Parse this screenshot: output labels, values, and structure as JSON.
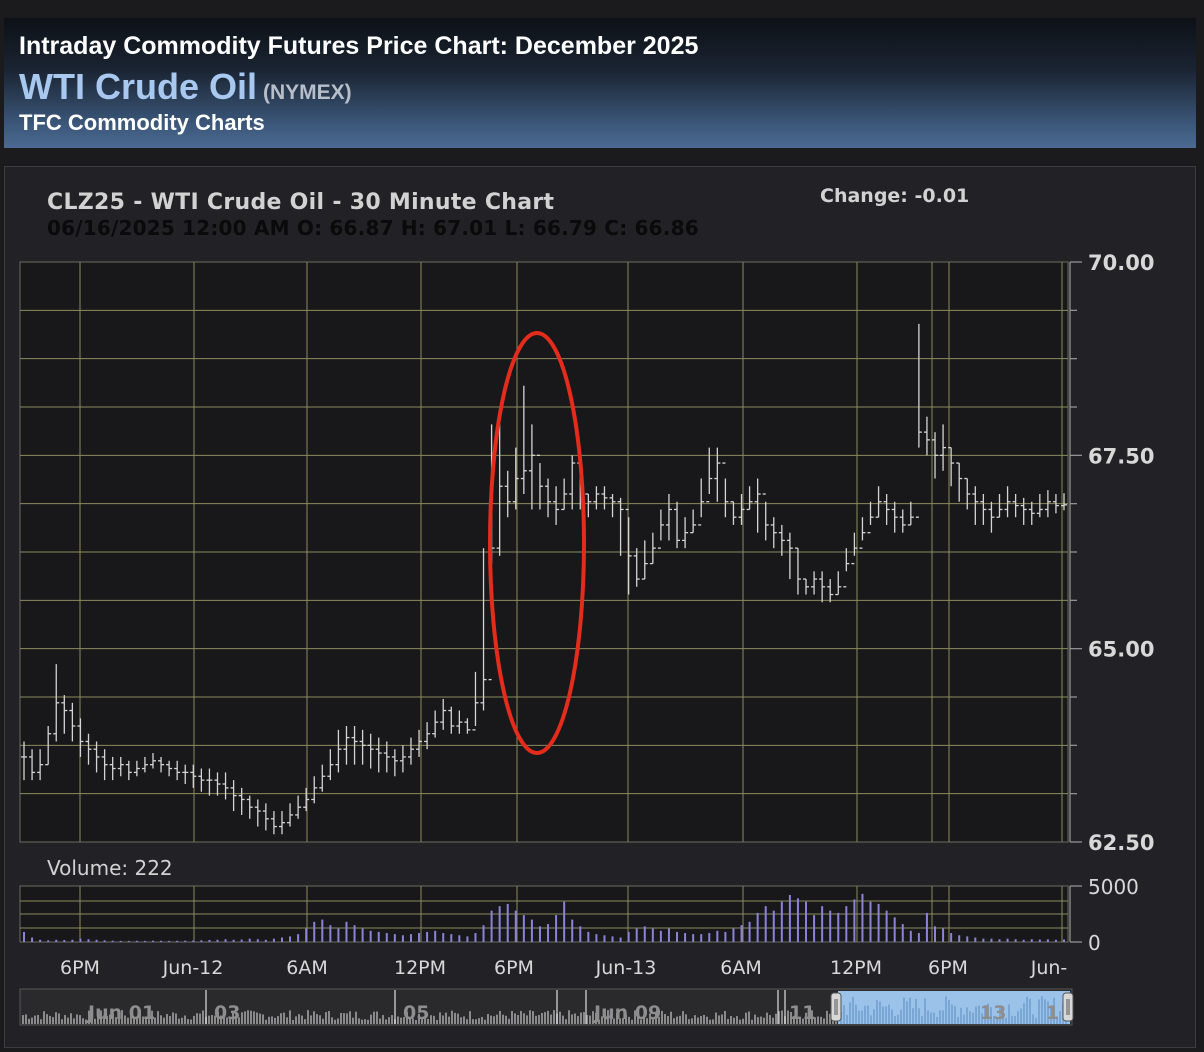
{
  "header": {
    "title": "Intraday Commodity Futures Price Chart: December 2025",
    "commodity": "WTI Crude Oil",
    "exchange": "(NYMEX)",
    "source": "TFC Commodity Charts"
  },
  "chart_data": {
    "type": "ohlc",
    "title": "CLZ25 - WTI Crude Oil - 30 Minute Chart",
    "ohlc_readout": "06/16/2025 12:00 AM O: 66.87 H: 67.01 L: 66.79 C: 66.86",
    "change_label": "Change: -0.01",
    "volume_label": "Volume: 222",
    "ylim": [
      62.5,
      70.0
    ],
    "y_ticks": [
      {
        "label": "70.00",
        "value": 70.0
      },
      {
        "label": "67.50",
        "value": 67.5
      },
      {
        "label": "65.00",
        "value": 65.0
      },
      {
        "label": "62.50",
        "value": 62.5
      }
    ],
    "volume_ylim": [
      0,
      5000
    ],
    "volume_ticks": [
      {
        "label": "5000",
        "value": 5000
      },
      {
        "label": "0",
        "value": 0
      }
    ],
    "x_ticks": [
      "6PM",
      "Jun-12",
      "6AM",
      "12PM",
      "6PM",
      "Jun-13",
      "6AM",
      "12PM",
      "6PM",
      "Jun-"
    ],
    "navigator_labels": [
      "Jun 01",
      "03",
      "05",
      "Jun 09",
      "11",
      "13",
      "1"
    ],
    "closes": [
      63.6,
      63.4,
      63.5,
      63.9,
      64.3,
      64.2,
      64.0,
      63.8,
      63.7,
      63.6,
      63.5,
      63.45,
      63.5,
      63.4,
      63.45,
      63.5,
      63.55,
      63.5,
      63.45,
      63.4,
      63.4,
      63.35,
      63.3,
      63.3,
      63.25,
      63.2,
      63.1,
      63.05,
      62.95,
      62.9,
      62.8,
      62.7,
      62.75,
      62.85,
      62.95,
      63.05,
      63.2,
      63.35,
      63.5,
      63.7,
      63.85,
      63.8,
      63.75,
      63.7,
      63.65,
      63.6,
      63.55,
      63.6,
      63.7,
      63.8,
      63.9,
      64.05,
      64.2,
      64.0,
      64.05,
      63.95,
      64.3,
      64.6,
      66.3,
      67.1,
      66.9,
      67.2,
      67.3,
      67.5,
      67.1,
      66.9,
      66.8,
      67.0,
      67.4,
      67.0,
      66.9,
      67.0,
      66.95,
      66.9,
      66.8,
      66.2,
      65.9,
      66.1,
      66.3,
      66.6,
      66.8,
      66.4,
      66.5,
      66.6,
      66.9,
      67.2,
      67.4,
      66.9,
      66.7,
      66.8,
      66.9,
      67.0,
      66.6,
      66.5,
      66.4,
      66.3,
      65.9,
      65.8,
      65.9,
      65.8,
      65.7,
      65.8,
      66.1,
      66.3,
      66.5,
      66.7,
      66.9,
      66.8,
      66.7,
      66.6,
      66.7,
      67.8,
      67.7,
      67.5,
      67.6,
      67.4,
      67.2,
      67.0,
      66.9,
      66.8,
      66.7,
      66.8,
      66.9,
      66.85,
      66.8,
      66.75,
      66.8,
      66.9,
      66.85,
      66.86
    ],
    "highs": [
      63.8,
      63.7,
      63.7,
      64.0,
      64.8,
      64.4,
      64.3,
      64.1,
      63.9,
      63.8,
      63.7,
      63.6,
      63.6,
      63.55,
      63.55,
      63.6,
      63.65,
      63.6,
      63.55,
      63.55,
      63.5,
      63.5,
      63.45,
      63.45,
      63.4,
      63.4,
      63.3,
      63.2,
      63.1,
      63.05,
      63.0,
      62.9,
      62.9,
      63.0,
      63.1,
      63.2,
      63.35,
      63.5,
      63.7,
      63.95,
      64.0,
      64.0,
      63.95,
      63.9,
      63.85,
      63.8,
      63.7,
      63.75,
      63.85,
      63.95,
      64.05,
      64.2,
      64.35,
      64.25,
      64.2,
      64.1,
      64.7,
      66.3,
      67.9,
      67.9,
      67.3,
      67.6,
      68.4,
      67.9,
      67.4,
      67.2,
      67.1,
      67.2,
      67.5,
      67.3,
      67.0,
      67.1,
      67.1,
      67.0,
      66.95,
      66.7,
      66.3,
      66.4,
      66.5,
      66.8,
      67.0,
      66.9,
      66.7,
      66.8,
      67.2,
      67.6,
      67.6,
      67.2,
      66.9,
      67.0,
      67.1,
      67.2,
      66.9,
      66.7,
      66.6,
      66.5,
      66.3,
      65.9,
      66.0,
      66.0,
      65.9,
      66.0,
      66.3,
      66.5,
      66.7,
      66.9,
      67.1,
      67.0,
      66.9,
      66.8,
      66.9,
      69.2,
      68.0,
      67.8,
      67.9,
      67.6,
      67.4,
      67.2,
      67.1,
      67.0,
      66.9,
      67.0,
      67.1,
      67.0,
      66.95,
      66.9,
      67.0,
      67.05,
      67.0,
      67.01
    ],
    "lows": [
      63.3,
      63.3,
      63.3,
      63.5,
      63.8,
      63.9,
      63.8,
      63.6,
      63.5,
      63.4,
      63.3,
      63.3,
      63.35,
      63.3,
      63.35,
      63.4,
      63.45,
      63.4,
      63.35,
      63.3,
      63.25,
      63.2,
      63.15,
      63.1,
      63.1,
      63.05,
      62.9,
      62.85,
      62.8,
      62.7,
      62.65,
      62.6,
      62.6,
      62.7,
      62.8,
      62.9,
      63.0,
      63.15,
      63.3,
      63.4,
      63.5,
      63.5,
      63.5,
      63.45,
      63.4,
      63.4,
      63.35,
      63.4,
      63.5,
      63.6,
      63.7,
      63.85,
      63.95,
      63.9,
      63.9,
      63.9,
      64.0,
      64.2,
      66.1,
      66.2,
      66.7,
      66.8,
      67.0,
      66.8,
      66.8,
      66.7,
      66.6,
      66.8,
      66.8,
      66.8,
      66.7,
      66.8,
      66.8,
      66.7,
      66.2,
      65.7,
      65.8,
      65.9,
      66.1,
      66.4,
      66.4,
      66.3,
      66.3,
      66.5,
      66.7,
      67.0,
      66.9,
      66.7,
      66.6,
      66.6,
      66.8,
      66.5,
      66.4,
      66.3,
      66.2,
      65.9,
      65.7,
      65.7,
      65.7,
      65.6,
      65.6,
      65.7,
      66.0,
      66.2,
      66.4,
      66.6,
      66.7,
      66.6,
      66.5,
      66.5,
      66.6,
      67.6,
      67.5,
      67.2,
      67.3,
      67.1,
      66.9,
      66.8,
      66.6,
      66.6,
      66.5,
      66.7,
      66.7,
      66.7,
      66.6,
      66.6,
      66.7,
      66.7,
      66.75,
      66.79
    ],
    "volume": [
      900,
      400,
      200,
      150,
      200,
      180,
      200,
      300,
      250,
      200,
      150,
      120,
      100,
      100,
      110,
      100,
      120,
      110,
      100,
      110,
      120,
      130,
      150,
      180,
      200,
      250,
      200,
      220,
      300,
      250,
      200,
      300,
      400,
      500,
      700,
      1200,
      1800,
      2000,
      1500,
      1200,
      1800,
      1500,
      1200,
      1000,
      900,
      800,
      700,
      600,
      700,
      800,
      900,
      1000,
      800,
      700,
      600,
      500,
      800,
      1500,
      2800,
      3200,
      3400,
      2800,
      2400,
      2000,
      1400,
      1600,
      2400,
      3600,
      2000,
      1400,
      900,
      700,
      600,
      500,
      400,
      900,
      1200,
      1400,
      1200,
      1000,
      1200,
      900,
      800,
      700,
      700,
      800,
      1000,
      900,
      1200,
      1500,
      1800,
      2600,
      3200,
      2800,
      3600,
      4200,
      3900,
      3600,
      2400,
      3200,
      2800,
      2600,
      3200,
      3800,
      4300,
      3600,
      3400,
      2800,
      2200,
      1600,
      1000,
      800,
      2600,
      1400,
      1200,
      800,
      600,
      500,
      400,
      300,
      300,
      250,
      300,
      250,
      200,
      250,
      220,
      240,
      200,
      222
    ]
  }
}
